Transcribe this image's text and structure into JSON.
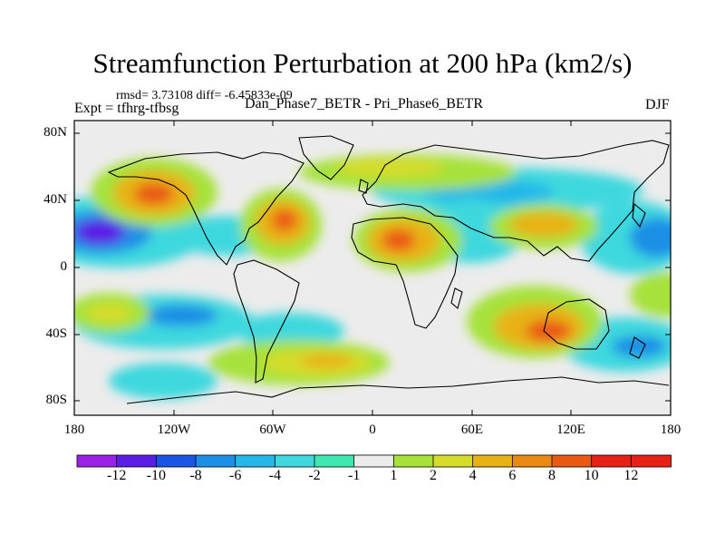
{
  "title": "Streamfunction Perturbation at 200 hPa (km2/s)",
  "stats": "rmsd= 3.73108  diff= -6.45833e-09",
  "experiment": "Expt = tfhrg-tfbsg",
  "case_pair": "Dan_Phase7_BETR - Pri_Phase6_BETR",
  "season": "DJF",
  "lat_ticks": [
    "80N",
    "40N",
    "0",
    "40S",
    "80S"
  ],
  "lon_ticks": [
    "180",
    "120W",
    "60W",
    "0",
    "60E",
    "120E",
    "180"
  ],
  "colorbar": {
    "labels": [
      "-12",
      "-10",
      "-8",
      "-6",
      "-4",
      "-2",
      "-1",
      "1",
      "2",
      "4",
      "6",
      "8",
      "10",
      "12"
    ],
    "colors": [
      "#9b20e8",
      "#5a1ee6",
      "#1a55e6",
      "#1c8fe6",
      "#24b8e8",
      "#3ed8de",
      "#3ee8b0",
      "#ececec",
      "#a6e23a",
      "#d6dc2a",
      "#e8b214",
      "#ea8a12",
      "#ea5a14",
      "#e82016"
    ]
  }
}
